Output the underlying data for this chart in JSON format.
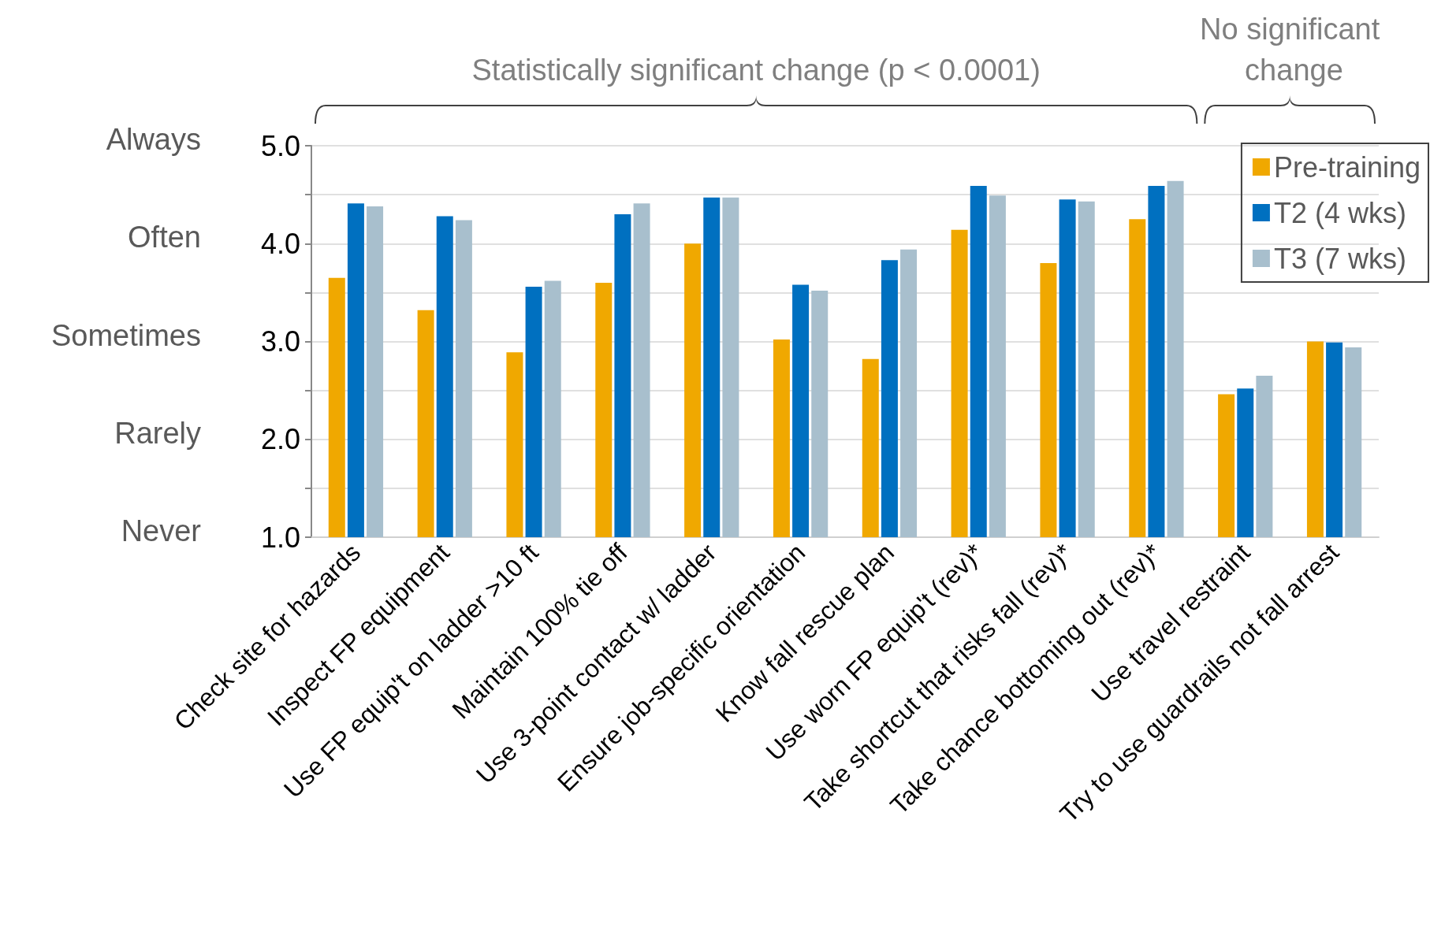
{
  "chart_data": {
    "type": "bar",
    "categories": [
      "Check site for hazards",
      "Inspect FP equipment",
      "Use FP equip't on ladder >10 ft",
      "Maintain 100% tie off",
      "Use 3-point contact w/ ladder",
      "Ensure job-specific orientation",
      "Know fall rescue plan",
      "Use worn FP equip't (rev)*",
      "Take shortcut that risks fall (rev)*",
      "Take chance bottoming out (rev)*",
      "Use travel restraint",
      "Try to use guardrails not fall arrest"
    ],
    "series": [
      {
        "name": "Pre-training",
        "color": "#f0a800",
        "values": [
          3.65,
          3.32,
          2.89,
          3.6,
          4.0,
          3.02,
          2.82,
          4.14,
          3.8,
          4.25,
          2.46,
          3.0
        ]
      },
      {
        "name": "T2 (4 wks)",
        "color": "#0070c0",
        "values": [
          4.41,
          4.28,
          3.56,
          4.3,
          4.47,
          3.58,
          3.83,
          4.59,
          4.45,
          4.59,
          2.52,
          2.99
        ]
      },
      {
        "name": "T3 (7 wks)",
        "color": "#a8bfcd",
        "values": [
          4.38,
          4.24,
          3.62,
          4.41,
          4.47,
          3.52,
          3.94,
          4.49,
          4.43,
          4.64,
          2.65,
          2.94
        ]
      }
    ],
    "ylim": [
      1,
      5
    ],
    "yticks": [
      {
        "value": 1,
        "label": "1.0"
      },
      {
        "value": 1.5,
        "label": null
      },
      {
        "value": 2,
        "label": "2.0"
      },
      {
        "value": 2.5,
        "label": null
      },
      {
        "value": 3,
        "label": "3.0"
      },
      {
        "value": 3.5,
        "label": null
      },
      {
        "value": 4,
        "label": "4.0"
      },
      {
        "value": 4.5,
        "label": null
      },
      {
        "value": 5,
        "label": "5.0"
      }
    ],
    "annotations": [
      "Statistically significant change (p < 0.0001)",
      "No significant change",
      "Always",
      "Often",
      "Sometimes",
      "Rarely",
      "Never"
    ],
    "grid": "y",
    "legend": "top right"
  }
}
